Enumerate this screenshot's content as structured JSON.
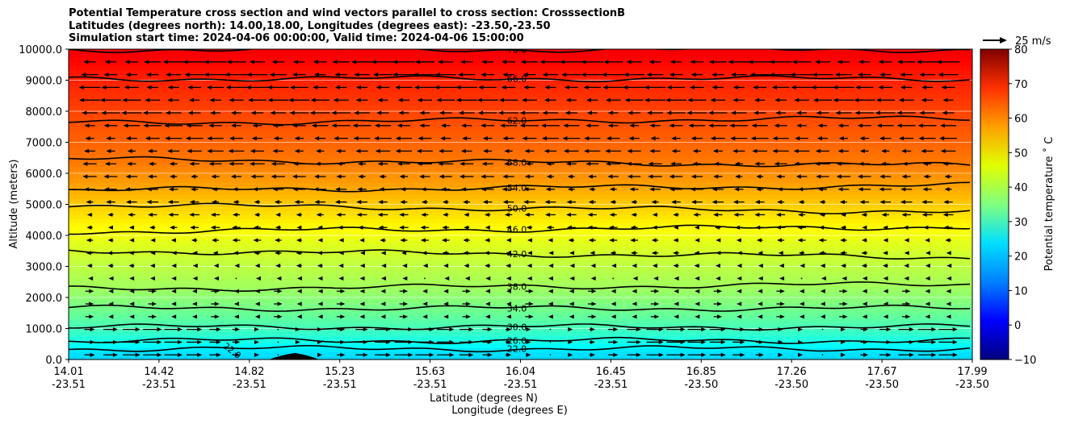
{
  "chart_data": {
    "type": "contourf",
    "title_lines": [
      "Potential Temperature cross section and wind vectors parallel to cross section: CrosssectionB",
      "Latitudes (degrees north): 14.00,18.00, Longitudes (degrees east): -23.50,-23.50",
      "Simulation start time: 2024-04-06 00:00:00, Valid time: 2024-04-06 15:00:00"
    ],
    "ylabel": "Altitude (meters)",
    "xlabel_line1": "Latitude (degrees N)",
    "xlabel_line2": "Longitude (degrees E)",
    "ylim": [
      0,
      10000
    ],
    "y_ticks": [
      "0.0",
      "1000.0",
      "2000.0",
      "3000.0",
      "4000.0",
      "5000.0",
      "6000.0",
      "7000.0",
      "8000.0",
      "9000.0",
      "10000.0"
    ],
    "x_ticks": [
      {
        "lat": "14.01",
        "lon": "-23.51"
      },
      {
        "lat": "14.42",
        "lon": "-23.51"
      },
      {
        "lat": "14.82",
        "lon": "-23.51"
      },
      {
        "lat": "15.23",
        "lon": "-23.51"
      },
      {
        "lat": "15.63",
        "lon": "-23.51"
      },
      {
        "lat": "16.04",
        "lon": "-23.51"
      },
      {
        "lat": "16.45",
        "lon": "-23.51"
      },
      {
        "lat": "16.85",
        "lon": "-23.50"
      },
      {
        "lat": "17.26",
        "lon": "-23.50"
      },
      {
        "lat": "17.67",
        "lon": "-23.50"
      },
      {
        "lat": "17.99",
        "lon": "-23.50"
      }
    ],
    "colorbar": {
      "label": "Potential temperature ˚ C",
      "range": [
        -10,
        80
      ],
      "ticks": [
        "−10",
        "0",
        "10",
        "20",
        "30",
        "40",
        "50",
        "60",
        "70",
        "80"
      ],
      "colormap": "jet"
    },
    "quiver_key_label": "25 m/s",
    "grid": true,
    "contour_levels": [
      {
        "value": 22,
        "label": "22.0",
        "alt": 350
      },
      {
        "value": 26,
        "label": "26.0",
        "alt": 610
      },
      {
        "value": 30,
        "label": "30.0",
        "alt": 1050
      },
      {
        "value": 34,
        "label": "34.0",
        "alt": 1650
      },
      {
        "value": 38,
        "label": "38.0",
        "alt": 2350
      },
      {
        "value": 42,
        "label": "42.0",
        "alt": 3400
      },
      {
        "value": 46,
        "label": "46.0",
        "alt": 4200
      },
      {
        "value": 50,
        "label": "50.0",
        "alt": 4870
      },
      {
        "value": 54,
        "label": "54.0",
        "alt": 5530
      },
      {
        "value": 58,
        "label": "58.0",
        "alt": 6350
      },
      {
        "value": 62,
        "label": "62.0",
        "alt": 7700
      },
      {
        "value": 66,
        "label": "66.0",
        "alt": 9050
      },
      {
        "value": 70,
        "label": "70.0",
        "alt": 9990
      }
    ],
    "lower_label": "22.0"
  }
}
